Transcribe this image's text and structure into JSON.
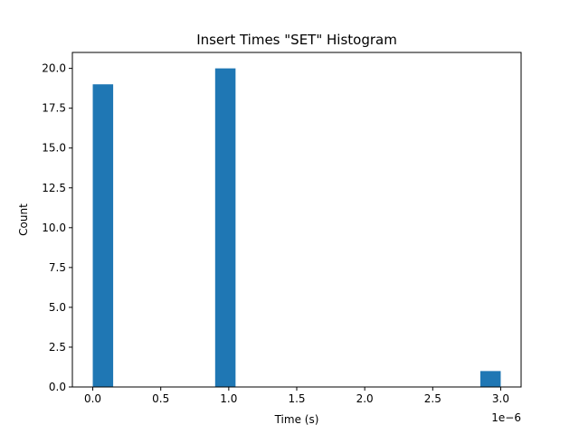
{
  "chart_data": {
    "type": "bar",
    "title": "Insert Times \"SET\" Histogram",
    "xlabel": "Time (s)",
    "ylabel": "Count",
    "x_offset_label": "1e−6",
    "xlim": [
      -0.15,
      3.15
    ],
    "ylim": [
      0,
      21
    ],
    "x_ticks": [
      0.0,
      0.5,
      1.0,
      1.5,
      2.0,
      2.5,
      3.0
    ],
    "x_tick_labels": [
      "0.0",
      "0.5",
      "1.0",
      "1.5",
      "2.0",
      "2.5",
      "3.0"
    ],
    "y_ticks": [
      0,
      2.5,
      5,
      7.5,
      10,
      12.5,
      15,
      17.5,
      20
    ],
    "y_tick_labels": [
      "0.0",
      "2.5",
      "5.0",
      "7.5",
      "10.0",
      "12.5",
      "15.0",
      "17.5",
      "20.0"
    ],
    "bars": [
      {
        "x_start": 0.0,
        "x_end": 0.15,
        "count": 19
      },
      {
        "x_start": 0.9,
        "x_end": 1.05,
        "count": 20
      },
      {
        "x_start": 2.85,
        "x_end": 3.0,
        "count": 1
      }
    ],
    "bar_color": "#1f77b4",
    "grid": false
  }
}
